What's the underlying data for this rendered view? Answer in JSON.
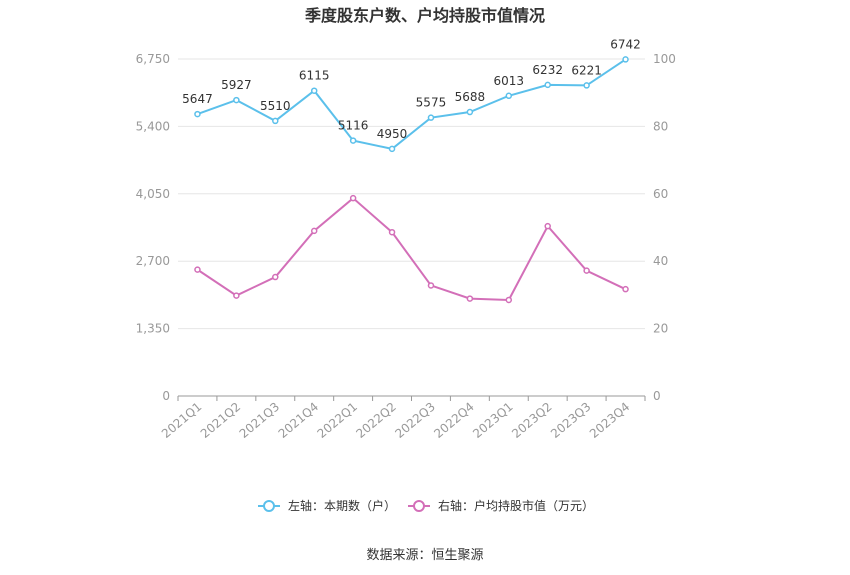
{
  "chart_data": {
    "type": "line",
    "title": "季度股东户数、户均持股市值情况",
    "categories": [
      "2021Q1",
      "2021Q2",
      "2021Q3",
      "2021Q4",
      "2022Q1",
      "2022Q2",
      "2022Q3",
      "2022Q4",
      "2023Q1",
      "2023Q2",
      "2023Q3",
      "2023Q4"
    ],
    "left_axis": {
      "ylim": [
        0,
        6750
      ],
      "ticks": [
        "0",
        "1,350",
        "2,700",
        "4,050",
        "5,400",
        "6,750"
      ]
    },
    "right_axis": {
      "ylim": [
        0,
        100
      ],
      "ticks": [
        "0",
        "20",
        "40",
        "60",
        "80",
        "100"
      ]
    },
    "series": [
      {
        "name": "左轴：本期数（户）",
        "axis": "left",
        "color": "#5bc0eb",
        "values": [
          5647,
          5927,
          5510,
          6115,
          5116,
          4950,
          5575,
          5688,
          6013,
          6232,
          6221,
          6742
        ],
        "labels": [
          "5647",
          "5927",
          "5510",
          "6115",
          "5116",
          "4950",
          "5575",
          "5688",
          "6013",
          "6232",
          "6221",
          "6742"
        ]
      },
      {
        "name": "右轴：户均持股市值（万元）",
        "axis": "right",
        "color": "#d36fb8",
        "values": [
          37.5,
          29.8,
          35.3,
          49.0,
          58.7,
          48.6,
          32.8,
          28.9,
          28.5,
          50.4,
          37.2,
          31.7
        ]
      }
    ],
    "grid": true,
    "legend_position": "bottom",
    "source": "数据来源：恒生聚源"
  }
}
